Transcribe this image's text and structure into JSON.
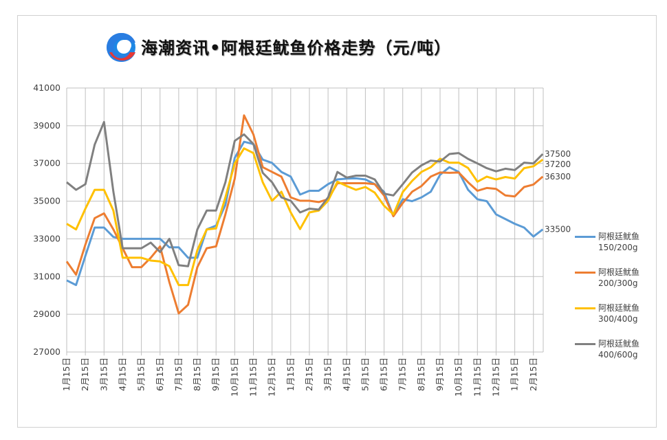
{
  "title": "海潮资讯•阿根廷鱿鱼价格走势（元/吨）",
  "logo_icon": "haichao-c-logo",
  "chart_data": {
    "type": "line",
    "title": "海潮资讯•阿根廷鱿鱼价格走势（元/吨）",
    "xlabel": "",
    "ylabel": "",
    "ylim": [
      27000,
      41000
    ],
    "yticks": [
      "41000",
      "39000",
      "37000",
      "35000",
      "33000",
      "31000",
      "29000",
      "27000"
    ],
    "xtick_labels": [
      "1月15日",
      "2月15日",
      "3月15日",
      "4月15日",
      "5月15日",
      "6月15日",
      "7月15日",
      "8月15日",
      "9月15日",
      "10月15日",
      "11月15日",
      "12月15日",
      "1月15日",
      "2月15日",
      "3月15日",
      "4月15日",
      "5月15日",
      "6月15日",
      "7月15日",
      "8月15日",
      "9月15日",
      "10月15日",
      "11月15日",
      "12月15日",
      "1月15日",
      "2月15日"
    ],
    "x": [
      "1月15日",
      "2月1日",
      "2月15日",
      "3月1日",
      "3月15日",
      "4月1日",
      "4月15日",
      "5月1日",
      "5月15日",
      "6月1日",
      "6月15日",
      "7月1日",
      "7月15日",
      "8月1日",
      "8月15日",
      "9月1日",
      "9月15日",
      "10月1日",
      "10月15日",
      "11月1日",
      "11月15日",
      "12月1日",
      "12月15日",
      "1月1日",
      "1月15日",
      "2月1日",
      "2月15日",
      "3月1日",
      "3月15日",
      "4月1日",
      "4月15日",
      "5月1日",
      "5月15日",
      "6月1日",
      "6月15日",
      "7月1日",
      "7月15日",
      "8月1日",
      "8月15日",
      "9月1日",
      "9月15日",
      "10月1日",
      "10月15日",
      "11月1日",
      "11月15日",
      "12月1日",
      "12月15日",
      "1月1日",
      "1月15日",
      "2月1日",
      "2月15日",
      "3月1日"
    ],
    "grid": true,
    "legend_position": "right",
    "series": [
      {
        "name": "阿根廷鱿鱼150/200g",
        "name_lines": [
          "阿根廷鱿鱼",
          "150/200g"
        ],
        "color": "#5B9BD5",
        "end_label": "33500",
        "values": [
          30800,
          30550,
          32100,
          33600,
          33600,
          33100,
          33000,
          33000,
          33000,
          33000,
          33000,
          32550,
          32550,
          32000,
          32000,
          33500,
          33700,
          34800,
          37300,
          38150,
          38030,
          37200,
          37030,
          36550,
          36300,
          35350,
          35550,
          35550,
          35900,
          36150,
          36200,
          36210,
          36150,
          35900,
          35500,
          34200,
          35100,
          35000,
          35200,
          35500,
          36400,
          36800,
          36550,
          35600,
          35100,
          35000,
          34300,
          34050,
          33800,
          33600,
          33120,
          33500
        ]
      },
      {
        "name": "阿根廷鱿鱼200/300g",
        "name_lines": [
          "阿根廷鱿鱼",
          "200/300g"
        ],
        "color": "#ED7D31",
        "end_label": "36300",
        "values": [
          31800,
          31100,
          32700,
          34100,
          34350,
          33500,
          32500,
          31500,
          31500,
          32000,
          32600,
          30700,
          29050,
          29500,
          31500,
          32500,
          32600,
          34300,
          36200,
          39550,
          38540,
          36800,
          36550,
          36300,
          35200,
          35020,
          35020,
          34950,
          35100,
          35950,
          35950,
          35950,
          35950,
          35900,
          35300,
          34200,
          34900,
          35500,
          35800,
          36300,
          36520,
          36500,
          36520,
          36000,
          35550,
          35700,
          35650,
          35300,
          35250,
          35750,
          35880,
          36300
        ]
      },
      {
        "name": "阿根廷鱿鱼300/400g",
        "name_lines": [
          "阿根廷鱿鱼",
          "300/400g"
        ],
        "color": "#FFC000",
        "end_label": "37200",
        "values": [
          33800,
          33500,
          34600,
          35600,
          35600,
          34500,
          32000,
          32000,
          32000,
          31850,
          31800,
          31550,
          30550,
          30550,
          32400,
          33500,
          33550,
          35200,
          37000,
          37800,
          37550,
          36000,
          35020,
          35500,
          34400,
          33520,
          34400,
          34500,
          35020,
          36030,
          35800,
          35600,
          35750,
          35450,
          34760,
          34300,
          35480,
          36070,
          36550,
          36800,
          37250,
          37040,
          37040,
          36760,
          36030,
          36300,
          36150,
          36280,
          36200,
          36750,
          36850,
          37200
        ]
      },
      {
        "name": "阿根廷鱿鱼400/600g",
        "name_lines": [
          "阿根廷鱿鱼",
          "400/600g"
        ],
        "color": "#808080",
        "end_label": "37500",
        "values": [
          36000,
          35600,
          35900,
          38000,
          39200,
          35500,
          32500,
          32500,
          32500,
          32800,
          32300,
          33000,
          31600,
          31550,
          33500,
          34500,
          34500,
          36000,
          38200,
          38540,
          38030,
          36500,
          36000,
          35200,
          35020,
          34400,
          34600,
          34550,
          35200,
          36550,
          36250,
          36350,
          36350,
          36150,
          35400,
          35300,
          35900,
          36520,
          36900,
          37150,
          37100,
          37500,
          37550,
          37240,
          37000,
          36750,
          36580,
          36720,
          36650,
          37040,
          37000,
          37500
        ]
      }
    ]
  }
}
